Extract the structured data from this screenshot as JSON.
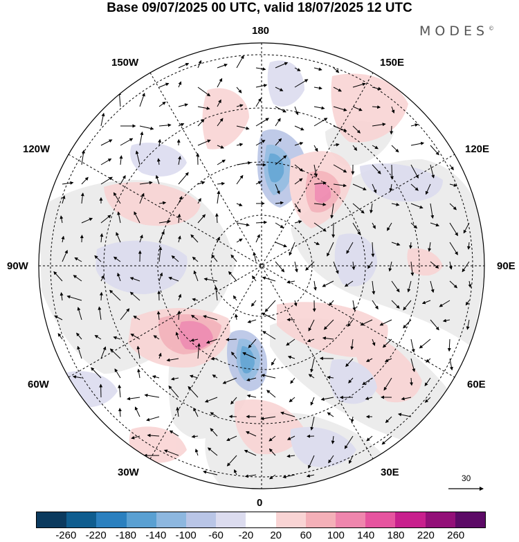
{
  "title": "Base 09/07/2025 00 UTC, valid 18/07/2025 12 UTC",
  "brand": {
    "name": "MODES",
    "mark": "©"
  },
  "meridian_labels": {
    "top": "180",
    "bottom": "0",
    "left": "90W",
    "right": "90E",
    "upper_left_1": "150W",
    "upper_left_2": "120W",
    "upper_right_1": "150E",
    "upper_right_2": "120E",
    "lower_left_1": "60W",
    "lower_left_2": "30W",
    "lower_right_1": "60E",
    "lower_right_2": "30E"
  },
  "reference_vector": {
    "value": "30"
  },
  "colorbar": {
    "colors": [
      "#0b3a5e",
      "#0f5d8f",
      "#2b80bf",
      "#5aa0d2",
      "#8db7df",
      "#b9c5e6",
      "#dcdcef",
      "#ffffff",
      "#f9d4d4",
      "#f4b0b8",
      "#ef86ad",
      "#e6549f",
      "#c8208d",
      "#931078",
      "#5c0a66"
    ],
    "ticks": [
      "-260",
      "-220",
      "-180",
      "-140",
      "-100",
      "-60",
      "-20",
      "20",
      "60",
      "100",
      "140",
      "180",
      "220",
      "260"
    ]
  },
  "map": {
    "projection": "north polar stereographic",
    "land_color": "#ececec",
    "ocean_color": "#ffffff",
    "graticule": "dashed"
  }
}
